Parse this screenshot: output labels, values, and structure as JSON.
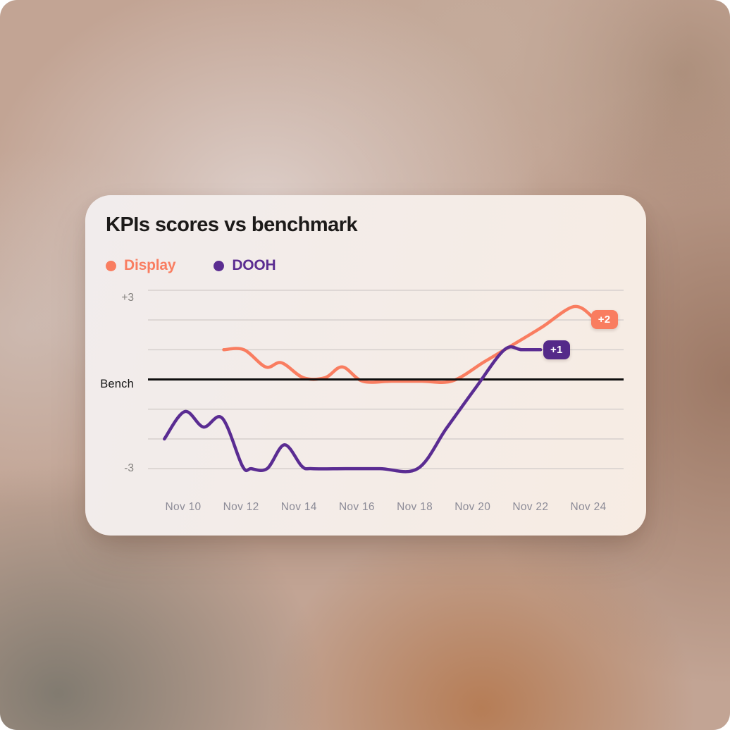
{
  "card": {
    "title": "KPIs scores vs benchmark",
    "legend": [
      {
        "label": "Display",
        "color": "#F97D60"
      },
      {
        "label": "DOOH",
        "color": "#5B2D91"
      }
    ]
  },
  "chart_data": {
    "type": "line",
    "title": "KPIs scores vs benchmark",
    "x_unit": "date (November)",
    "x_ticks": [
      "Nov 10",
      "Nov 12",
      "Nov 14",
      "Nov 16",
      "Nov 18",
      "Nov 20",
      "Nov 22",
      "Nov 24"
    ],
    "x_tick_days": [
      10,
      12,
      14,
      16,
      18,
      20,
      22,
      24
    ],
    "y_ticks": [
      {
        "label": "+3",
        "value": 3
      },
      {
        "label": "Bench",
        "value": 0
      },
      {
        "label": "-3",
        "value": -3
      }
    ],
    "ylim": [
      -3.6,
      3.4
    ],
    "grid_values": [
      3,
      2,
      1,
      -1,
      -2,
      -3
    ],
    "benchmark_value": 0,
    "grid_color": "#D8D2CF",
    "benchmark_color": "#0E0E0E",
    "series": [
      {
        "name": "Display",
        "color": "#F97D60",
        "end_label": "+2",
        "end_value": 2,
        "points": [
          [
            11.4,
            1
          ],
          [
            12.1,
            1
          ],
          [
            12.85,
            0.42
          ],
          [
            13.4,
            0.56
          ],
          [
            14.15,
            0.06
          ],
          [
            14.9,
            0.06
          ],
          [
            15.5,
            0.42
          ],
          [
            16.2,
            -0.06
          ],
          [
            17.2,
            -0.06
          ],
          [
            18.25,
            -0.06
          ],
          [
            19.3,
            -0.05
          ],
          [
            20.4,
            0.59
          ],
          [
            21.4,
            1.17
          ],
          [
            22.4,
            1.76
          ],
          [
            23.5,
            2.45
          ],
          [
            24.15,
            2.1
          ]
        ]
      },
      {
        "name": "DOOH",
        "color": "#5A2C92",
        "end_label": "+1",
        "end_value": 1,
        "points": [
          [
            9.35,
            -2
          ],
          [
            10.05,
            -1.08
          ],
          [
            10.7,
            -1.6
          ],
          [
            11.35,
            -1.3
          ],
          [
            12.05,
            -2.92
          ],
          [
            12.35,
            -3
          ],
          [
            12.9,
            -3
          ],
          [
            13.5,
            -2.2
          ],
          [
            14.1,
            -2.92
          ],
          [
            14.45,
            -3
          ],
          [
            15.6,
            -3
          ],
          [
            16.8,
            -3
          ],
          [
            18.1,
            -3
          ],
          [
            19.1,
            -1.64
          ],
          [
            20.1,
            -0.29
          ],
          [
            21.1,
            1
          ],
          [
            21.7,
            1
          ],
          [
            22.35,
            1
          ]
        ]
      }
    ],
    "badges": [
      {
        "label": "+2",
        "color": "#F97D60",
        "day": 24.55,
        "value": 2.02
      },
      {
        "label": "+1",
        "color": "#542989",
        "day": 22.9,
        "value": 1.0
      }
    ]
  }
}
